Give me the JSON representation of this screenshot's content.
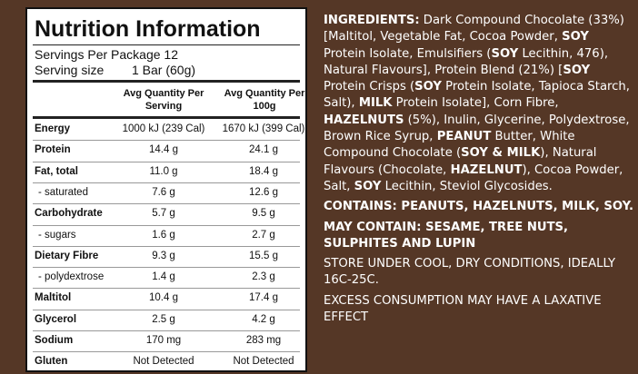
{
  "nutrition": {
    "title": "Nutrition Information",
    "servings_per_package": "Servings Per Package 12",
    "serving_size_label": "Serving size",
    "serving_size": "1 Bar (60g)",
    "column_headers": [
      "Avg Quantity Per Serving",
      "Avg Quantity Per 100g"
    ],
    "rows": [
      [
        "Energy",
        "1000 kJ (239 Cal)",
        "1670 kJ (399 Cal)"
      ],
      [
        "Protein",
        "14.4 g",
        "24.1 g"
      ],
      [
        "Fat, total",
        "11.0 g",
        "18.4 g"
      ],
      [
        "- saturated",
        "7.6 g",
        "12.6 g"
      ],
      [
        "Carbohydrate",
        "5.7 g",
        "9.5 g"
      ],
      [
        "- sugars",
        "1.6 g",
        "2.7 g"
      ],
      [
        "Dietary Fibre",
        "9.3 g",
        "15.5 g"
      ],
      [
        "- polydextrose",
        "1.4 g",
        "2.3 g"
      ],
      [
        "Maltitol",
        "10.4 g",
        "17.4 g"
      ],
      [
        "Glycerol",
        "2.5 g",
        "4.2 g"
      ],
      [
        "Sodium",
        "170 mg",
        "283 mg"
      ],
      [
        "Gluten",
        "Not Detected",
        "Not Detected"
      ]
    ]
  },
  "ingredients": {
    "label": "INGREDIENTS:",
    "parts": [
      {
        "text": " Dark Compound Chocolate (33%) [Maltitol, Vegetable Fat, Cocoa Powder, ",
        "bold": false
      },
      {
        "text": "SOY",
        "bold": true
      },
      {
        "text": " Protein Isolate, Emulsifiers (",
        "bold": false
      },
      {
        "text": "SOY",
        "bold": true
      },
      {
        "text": " Lecithin, 476), Natural Flavours], Protein Blend (21%) [",
        "bold": false
      },
      {
        "text": "SOY",
        "bold": true
      },
      {
        "text": " Protein Crisps (",
        "bold": false
      },
      {
        "text": "SOY",
        "bold": true
      },
      {
        "text": " Protein Isolate, Tapioca Starch, Salt), ",
        "bold": false
      },
      {
        "text": "MILK",
        "bold": true
      },
      {
        "text": " Protein Isolate], Corn Fibre, ",
        "bold": false
      },
      {
        "text": "HAZELNUTS",
        "bold": true
      },
      {
        "text": " (5%), Inulin, Glycerine, Polydextrose, Brown Rice Syrup, ",
        "bold": false
      },
      {
        "text": "PEANUT",
        "bold": true
      },
      {
        "text": " Butter, White Compound Chocolate (",
        "bold": false
      },
      {
        "text": "SOY & MILK",
        "bold": true
      },
      {
        "text": "), Natural Flavours (Chocolate, ",
        "bold": false
      },
      {
        "text": "HAZELNUT",
        "bold": true
      },
      {
        "text": "), Cocoa Powder, Salt, ",
        "bold": false
      },
      {
        "text": "SOY",
        "bold": true
      },
      {
        "text": " Lecithin, Steviol Glycosides.",
        "bold": false
      }
    ]
  },
  "contains": "CONTAINS: PEANUTS, HAZELNUTS, MILK, SOY.",
  "may_contain": "MAY CONTAIN: SESAME, TREE NUTS, SULPHITES AND LUPIN",
  "storage": "STORE UNDER COOL, DRY CONDITIONS, IDEALLY 16C-25C.",
  "warning": "EXCESS CONSUMPTION MAY HAVE A LAXATIVE EFFECT"
}
